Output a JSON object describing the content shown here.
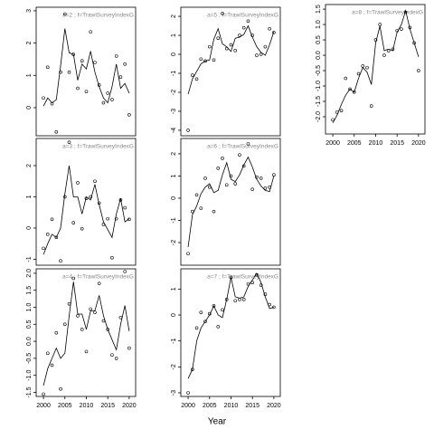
{
  "xlabel": "Year",
  "chart_data": [
    {
      "type": "line",
      "title": "a=2 ; f=TrawlSurveyIndexG",
      "xlim": [
        1998.3,
        2021.5
      ],
      "ylim": [
        -0.87,
        3.11
      ],
      "xticks": [
        2000,
        2005,
        2010,
        2015,
        2020
      ],
      "show_xticks": false,
      "yticks": [
        0,
        1,
        2,
        3
      ],
      "x": [
        2000,
        2001,
        2002,
        2003,
        2004,
        2005,
        2006,
        2007,
        2008,
        2009,
        2010,
        2011,
        2012,
        2013,
        2014,
        2015,
        2016,
        2017,
        2018,
        2019,
        2020
      ],
      "series": [
        {
          "style": "line",
          "color": "#000000",
          "values": [
            0.05,
            0.3,
            0.15,
            0.25,
            1.3,
            2.45,
            1.7,
            1.65,
            0.85,
            1.35,
            1.2,
            1.75,
            1.1,
            0.65,
            0.3,
            0.15,
            0.65,
            1.35,
            0.6,
            0.75,
            0.45
          ]
        },
        {
          "style": "points",
          "color": "#000000",
          "values": [
            0.3,
            1.25,
            0.12,
            -0.75,
            1.1,
            2.9,
            1.1,
            1.65,
            0.6,
            1.45,
            0.5,
            2.35,
            1.4,
            0.7,
            0.15,
            0.45,
            0.25,
            1.6,
            0.95,
            1.35,
            -0.22
          ]
        }
      ]
    },
    {
      "type": "line",
      "title": "a=3 ; f=TrawlSurveyIndexG",
      "xlim": [
        1998.3,
        2021.5
      ],
      "ylim": [
        -1.19,
        2.87
      ],
      "xticks": [
        2000,
        2005,
        2010,
        2015,
        2020
      ],
      "show_xticks": false,
      "yticks": [
        -1,
        0,
        1,
        2
      ],
      "x": [
        2000,
        2001,
        2002,
        2003,
        2004,
        2005,
        2006,
        2007,
        2008,
        2009,
        2010,
        2011,
        2012,
        2013,
        2014,
        2015,
        2016,
        2017,
        2018,
        2019,
        2020
      ],
      "series": [
        {
          "style": "line",
          "color": "#000000",
          "values": [
            -0.85,
            -0.5,
            -0.2,
            -0.3,
            0.0,
            1.1,
            2.0,
            1.0,
            1.0,
            0.45,
            1.0,
            0.9,
            1.4,
            0.75,
            0.2,
            -0.05,
            -0.3,
            0.45,
            0.95,
            0.2,
            0.3
          ]
        },
        {
          "style": "points",
          "color": "#000000",
          "values": [
            -0.65,
            -0.2,
            0.28,
            -0.3,
            -1.05,
            1.0,
            2.75,
            0.17,
            1.45,
            -0.02,
            0.95,
            1.0,
            1.5,
            0.8,
            0.12,
            0.3,
            -0.95,
            0.3,
            0.9,
            0.65,
            0.28
          ]
        }
      ]
    },
    {
      "type": "line",
      "title": "a=4 ; f=TrawlSurveyIndexG",
      "xlim": [
        1998.3,
        2021.5
      ],
      "ylim": [
        -1.62,
        2.13
      ],
      "xticks": [
        2000,
        2005,
        2010,
        2015,
        2020
      ],
      "show_xticks": true,
      "yticks": [
        -1.5,
        {
          "value": -1,
          "label": "-1.0"
        },
        -0.5,
        {
          "value": 0,
          "label": "0.0"
        },
        0.5,
        {
          "value": 1,
          "label": "1.0"
        },
        1.5,
        {
          "value": 2,
          "label": "2.0"
        }
      ],
      "x": [
        2000,
        2001,
        2002,
        2003,
        2004,
        2005,
        2006,
        2007,
        2008,
        2009,
        2010,
        2011,
        2012,
        2013,
        2014,
        2015,
        2016,
        2017,
        2018,
        2019,
        2020
      ],
      "series": [
        {
          "style": "line",
          "color": "#000000",
          "values": [
            -1.3,
            -0.8,
            -0.5,
            -0.2,
            -0.5,
            -0.35,
            0.75,
            1.75,
            0.8,
            0.8,
            0.35,
            0.9,
            0.9,
            1.35,
            0.75,
            0.35,
            0.05,
            -0.25,
            0.5,
            1.05,
            0.3
          ]
        },
        {
          "style": "points",
          "color": "#000000",
          "values": [
            -1.55,
            -0.35,
            -0.7,
            0.25,
            -1.4,
            0.5,
            1.1,
            1.85,
            0.75,
            0.35,
            -0.3,
            0.95,
            0.85,
            1.7,
            0.6,
            0.35,
            -0.4,
            -0.5,
            0.7,
            2.05,
            -0.2
          ]
        }
      ]
    },
    {
      "type": "line",
      "title": "a=5 ; f=TrawlSurveyIndexG",
      "xlim": [
        1998.3,
        2021.5
      ],
      "ylim": [
        -4.29,
        2.48
      ],
      "xticks": [
        2000,
        2005,
        2010,
        2015,
        2020
      ],
      "show_xticks": false,
      "yticks": [
        -4,
        -3,
        -2,
        -1,
        0,
        1,
        2
      ],
      "x": [
        2000,
        2001,
        2002,
        2003,
        2004,
        2005,
        2006,
        2007,
        2008,
        2009,
        2010,
        2011,
        2012,
        2013,
        2014,
        2015,
        2016,
        2017,
        2018,
        2019,
        2020
      ],
      "series": [
        {
          "style": "line",
          "color": "#000000",
          "values": [
            -2.1,
            -1.3,
            -0.9,
            -0.5,
            -0.35,
            -0.3,
            0.8,
            1.35,
            0.55,
            0.4,
            0.15,
            0.85,
            0.9,
            1.05,
            1.5,
            0.9,
            0.4,
            0.1,
            -0.05,
            0.5,
            1.2
          ]
        },
        {
          "style": "points",
          "color": "#000000",
          "values": [
            -4.0,
            -1.1,
            -1.3,
            -0.25,
            -0.35,
            0.4,
            -0.3,
            0.85,
            2.15,
            0.3,
            0.5,
            0.2,
            1.0,
            1.4,
            1.75,
            1.0,
            -0.05,
            0.0,
            0.4,
            1.35,
            1.15
          ]
        }
      ]
    },
    {
      "type": "line",
      "title": "a=6 ; f=TrawlSurveyIndexG",
      "xlim": [
        1998.3,
        2021.5
      ],
      "ylim": [
        -3.02,
        2.69
      ],
      "xticks": [
        2000,
        2005,
        2010,
        2015,
        2020
      ],
      "show_xticks": false,
      "yticks": [
        -2,
        -1,
        0,
        1,
        2
      ],
      "x": [
        2000,
        2001,
        2002,
        2003,
        2004,
        2005,
        2006,
        2007,
        2008,
        2009,
        2010,
        2011,
        2012,
        2013,
        2014,
        2015,
        2016,
        2017,
        2018,
        2019,
        2020
      ],
      "series": [
        {
          "style": "line",
          "color": "#000000",
          "values": [
            -2.2,
            -0.75,
            -0.35,
            0.2,
            0.5,
            0.65,
            0.25,
            0.35,
            1.05,
            1.6,
            0.85,
            0.75,
            1.05,
            1.5,
            1.85,
            1.4,
            0.85,
            0.55,
            0.35,
            0.3,
            1.0
          ]
        },
        {
          "style": "points",
          "color": "#000000",
          "values": [
            -2.5,
            -0.6,
            0.15,
            -0.45,
            0.9,
            0.5,
            -0.6,
            1.35,
            1.8,
            0.6,
            1.0,
            0.65,
            1.95,
            1.45,
            2.45,
            0.4,
            0.95,
            0.9,
            0.45,
            0.5,
            1.05
          ]
        }
      ]
    },
    {
      "type": "line",
      "title": "a=7 ; f=TrawlSurveyIndexG",
      "xlim": [
        1998.3,
        2021.5
      ],
      "ylim": [
        -3.14,
        1.78
      ],
      "xticks": [
        2000,
        2005,
        2010,
        2015,
        2020
      ],
      "show_xticks": true,
      "yticks": [
        -3,
        -2,
        -1,
        0,
        1
      ],
      "x": [
        2000,
        2001,
        2002,
        2003,
        2004,
        2005,
        2006,
        2007,
        2008,
        2009,
        2010,
        2011,
        2012,
        2013,
        2014,
        2015,
        2016,
        2017,
        2018,
        2019,
        2020
      ],
      "series": [
        {
          "style": "line",
          "color": "#000000",
          "values": [
            -2.45,
            -2.1,
            -1.0,
            -0.5,
            -0.25,
            0.0,
            0.35,
            0.0,
            -0.1,
            0.6,
            1.45,
            0.7,
            0.65,
            0.7,
            1.1,
            1.35,
            1.6,
            1.25,
            0.7,
            0.25,
            0.3
          ]
        },
        {
          "style": "points",
          "color": "#000000",
          "values": [
            -3.0,
            -2.1,
            -0.5,
            0.1,
            -0.25,
            0.05,
            0.35,
            -0.45,
            0.2,
            0.6,
            1.45,
            0.55,
            0.6,
            0.6,
            1.2,
            1.25,
            1.55,
            1.15,
            0.8,
            0.4,
            0.3
          ]
        }
      ]
    },
    {
      "type": "line",
      "title": "a=8 ; f=TrawlSurveyIndexG",
      "xlim": [
        1998.3,
        2021.5
      ],
      "ylim": [
        -2.56,
        1.65
      ],
      "xticks": [
        2000,
        2005,
        2010,
        2015,
        2020
      ],
      "show_xticks": true,
      "yticks": [
        {
          "value": -2,
          "label": "-2.0"
        },
        -1.5,
        {
          "value": -1,
          "label": "-1.0"
        },
        -0.5,
        {
          "value": 0,
          "label": "0.0"
        },
        0.5,
        {
          "value": 1,
          "label": "1.0"
        },
        1.5
      ],
      "x": [
        2000,
        2001,
        2002,
        2003,
        2004,
        2005,
        2006,
        2007,
        2008,
        2009,
        2010,
        2011,
        2012,
        2013,
        2014,
        2015,
        2016,
        2017,
        2018,
        2019,
        2020
      ],
      "series": [
        {
          "style": "line",
          "color": "#000000",
          "values": [
            -2.2,
            -1.95,
            -1.6,
            -1.3,
            -1.1,
            -1.2,
            -0.75,
            -0.4,
            -0.55,
            -0.95,
            0.4,
            0.95,
            0.15,
            0.2,
            0.15,
            0.75,
            1.0,
            1.45,
            0.85,
            0.4,
            -0.05
          ]
        },
        {
          "style": "points",
          "color": "#000000",
          "values": [
            -2.1,
            -1.85,
            -1.8,
            -0.75,
            -1.1,
            -1.2,
            -0.6,
            -0.35,
            -0.4,
            -1.65,
            0.5,
            1.0,
            0.0,
            0.15,
            0.2,
            0.8,
            0.85,
            1.4,
            0.9,
            0.4,
            -0.5
          ]
        }
      ]
    }
  ]
}
